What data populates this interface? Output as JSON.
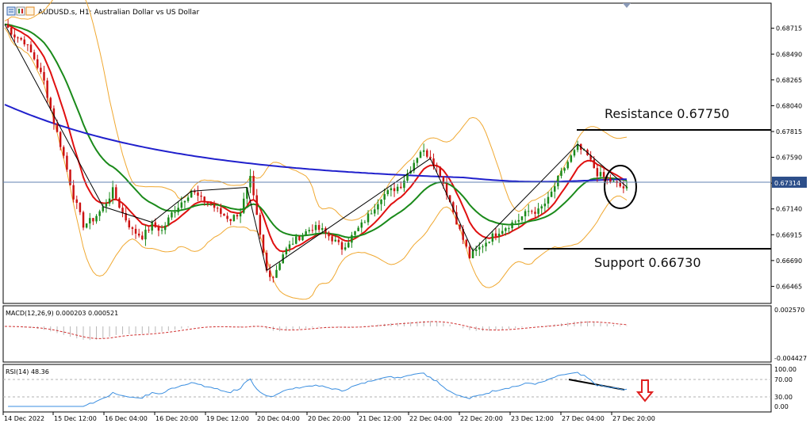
{
  "header": {
    "symbol_title": "AUDUSD.s, H1:  Australian Dollar vs US Dollar"
  },
  "annotations": {
    "resistance": "Resistance 0.67750",
    "support": "Support 0.66730"
  },
  "colors": {
    "bull_candle": "#1a8a1a",
    "bear_candle": "#cc1111",
    "ema_fast": "#e01010",
    "ema_mid": "#1a8a1a",
    "ema_slow": "#2020cc",
    "bollinger": "#f0a830",
    "macd_signal": "#d03030",
    "histogram": "#b8b8b8",
    "rsi_line": "#3a8ee0",
    "price_line": "#6080b0",
    "arrow": "#e02020"
  },
  "chart_data": [
    {
      "type": "candlestick",
      "title": "AUDUSD.s, H1:  Australian Dollar vs US Dollar",
      "y_ticks": [
        "0.68715",
        "0.68490",
        "0.68265",
        "0.68040",
        "0.67815",
        "0.67590",
        "0.67365",
        "0.67140",
        "0.66915",
        "0.66690",
        "0.66465"
      ],
      "y_tick_values": [
        0.68715,
        0.6849,
        0.68265,
        0.6804,
        0.67815,
        0.6759,
        0.67365,
        0.6714,
        0.66915,
        0.6669,
        0.66465
      ],
      "ylim": [
        0.6633,
        0.6892
      ],
      "current_price": "0.67314",
      "current_price_value": 0.67314,
      "resistance_level": 0.6775,
      "support_level": 0.6673,
      "x_ticks": [
        "14 Dec 2022",
        "15 Dec 12:00",
        "16 Dec 04:00",
        "16 Dec 20:00",
        "19 Dec 12:00",
        "20 Dec 04:00",
        "20 Dec 20:00",
        "21 Dec 12:00",
        "22 Dec 04:00",
        "22 Dec 20:00",
        "23 Dec 12:00",
        "27 Dec 04:00",
        "27 Dec 20:00"
      ],
      "close_path": [
        [
          0,
          0.6875
        ],
        [
          3,
          0.6865
        ],
        [
          6,
          0.686
        ],
        [
          9,
          0.6845
        ],
        [
          12,
          0.6825
        ],
        [
          15,
          0.679
        ],
        [
          18,
          0.676
        ],
        [
          21,
          0.6725
        ],
        [
          24,
          0.67
        ],
        [
          27,
          0.6705
        ],
        [
          30,
          0.6715
        ],
        [
          33,
          0.673
        ],
        [
          36,
          0.671
        ],
        [
          39,
          0.6695
        ],
        [
          42,
          0.669
        ],
        [
          45,
          0.67
        ],
        [
          48,
          0.6695
        ],
        [
          51,
          0.671
        ],
        [
          54,
          0.672
        ],
        [
          57,
          0.673
        ],
        [
          60,
          0.6722
        ],
        [
          63,
          0.6718
        ],
        [
          66,
          0.671
        ],
        [
          69,
          0.6705
        ],
        [
          72,
          0.6712
        ],
        [
          75,
          0.674
        ],
        [
          78,
          0.669
        ],
        [
          80,
          0.666
        ],
        [
          82,
          0.6655
        ],
        [
          85,
          0.6675
        ],
        [
          88,
          0.6685
        ],
        [
          91,
          0.6692
        ],
        [
          94,
          0.6698
        ],
        [
          97,
          0.6695
        ],
        [
          100,
          0.6688
        ],
        [
          103,
          0.668
        ],
        [
          106,
          0.669
        ],
        [
          109,
          0.67
        ],
        [
          112,
          0.6712
        ],
        [
          115,
          0.6725
        ],
        [
          118,
          0.673
        ],
        [
          121,
          0.6735
        ],
        [
          124,
          0.675
        ],
        [
          127,
          0.6765
        ],
        [
          130,
          0.676
        ],
        [
          133,
          0.6745
        ],
        [
          136,
          0.672
        ],
        [
          139,
          0.6695
        ],
        [
          142,
          0.6672
        ],
        [
          145,
          0.668
        ],
        [
          148,
          0.6688
        ],
        [
          151,
          0.6695
        ],
        [
          154,
          0.67
        ],
        [
          157,
          0.6705
        ],
        [
          160,
          0.6712
        ],
        [
          163,
          0.6712
        ],
        [
          166,
          0.6722
        ],
        [
          169,
          0.674
        ],
        [
          172,
          0.6755
        ],
        [
          175,
          0.6768
        ],
        [
          178,
          0.676
        ],
        [
          181,
          0.6745
        ],
        [
          184,
          0.674
        ],
        [
          187,
          0.6735
        ],
        [
          190,
          0.6731
        ]
      ]
    },
    {
      "type": "histogram",
      "title": "MACD(12,26,9) 0.000203 0.000521",
      "y_ticks": [
        "0.002570",
        "-0.004427"
      ],
      "y_tick_values": [
        0.00257,
        -0.004427
      ],
      "ylim": [
        -0.0047,
        0.0029
      ]
    },
    {
      "type": "line",
      "title": "RSI(14) 48.36",
      "y_ticks": [
        "100.00",
        "70.00",
        "30.00",
        "0.00"
      ],
      "y_tick_values": [
        100,
        70,
        30,
        0
      ],
      "ylim": [
        0,
        100
      ],
      "levels": [
        70,
        30
      ]
    }
  ]
}
